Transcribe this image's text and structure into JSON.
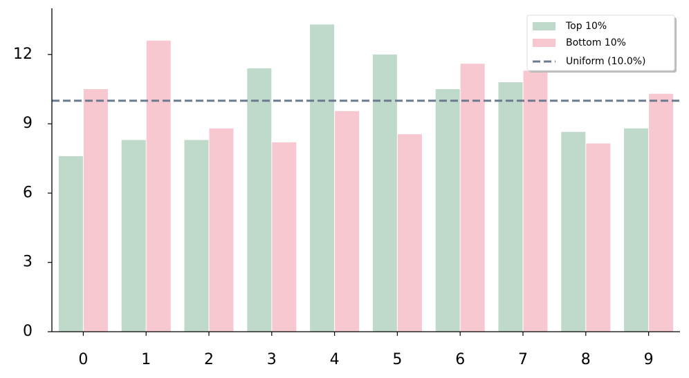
{
  "chart_data": {
    "type": "bar",
    "categories": [
      "0",
      "1",
      "2",
      "3",
      "4",
      "5",
      "6",
      "7",
      "8",
      "9"
    ],
    "series": [
      {
        "name": "Top 10%",
        "color": "#bfd9ca",
        "values": [
          7.6,
          8.3,
          8.3,
          11.4,
          13.3,
          12.0,
          10.5,
          10.8,
          8.65,
          8.8
        ]
      },
      {
        "name": "Bottom 10%",
        "color": "#f8c8d1",
        "values": [
          10.5,
          12.6,
          8.8,
          8.2,
          9.55,
          8.55,
          11.6,
          11.3,
          8.15,
          10.3
        ]
      }
    ],
    "reference_line": {
      "label": "Uniform (10.0%)",
      "value": 10,
      "color": "#6b7a8f"
    },
    "ylim": [
      0,
      14
    ],
    "yticks": [
      0,
      3,
      6,
      9,
      12
    ],
    "legend": "upper right"
  }
}
